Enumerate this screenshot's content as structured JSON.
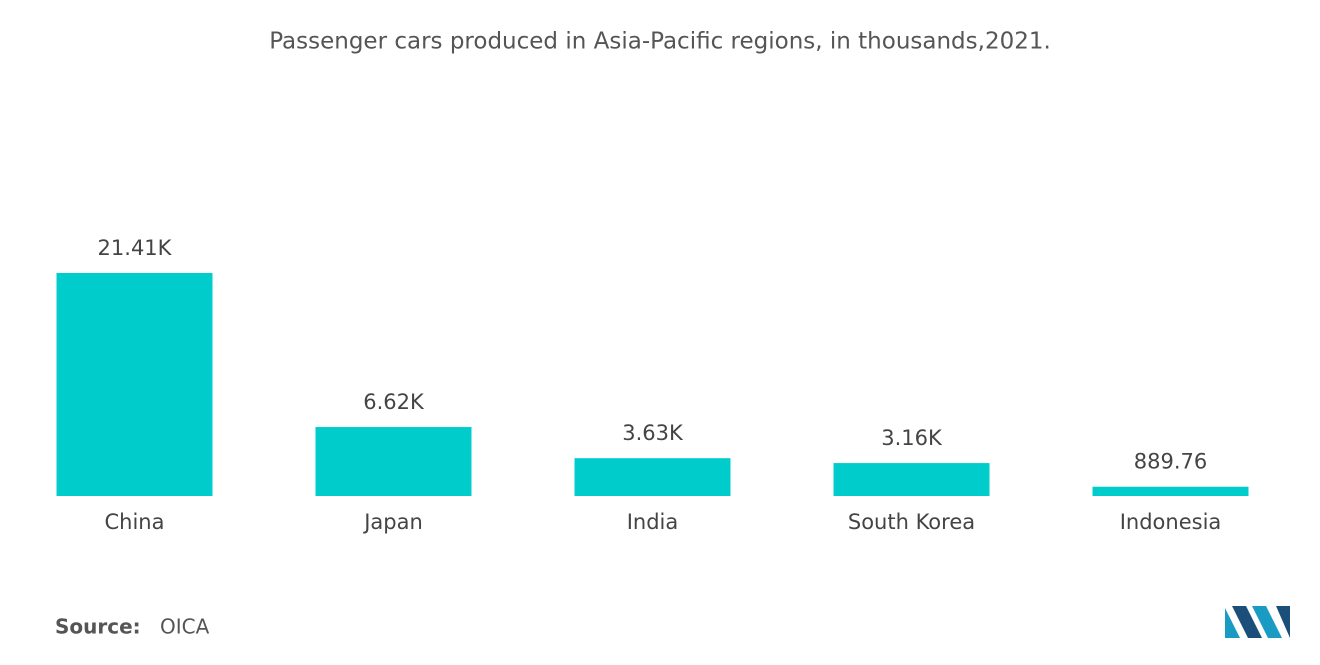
{
  "chart_data": {
    "type": "bar",
    "title": "Passenger cars produced in Asia-Pacific regions, in thousands,2021.",
    "categories": [
      "China",
      "Japan",
      "India",
      "South Korea",
      "Indonesia"
    ],
    "values": [
      21410,
      6620,
      3630,
      3160,
      889.76
    ],
    "value_labels": [
      "21.41K",
      "6.62K",
      "3.63K",
      "3.16K",
      "889.76"
    ],
    "color": "#00cccc",
    "source_label": "Source:",
    "source": "OICA"
  }
}
